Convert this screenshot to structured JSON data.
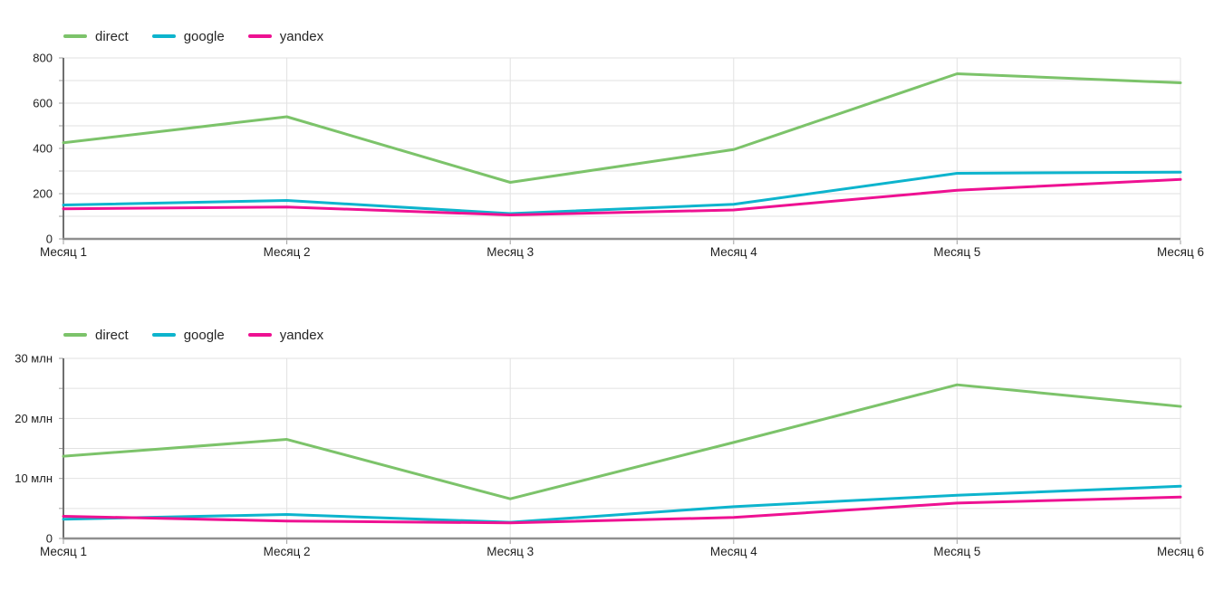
{
  "page": {
    "background": "#ffffff"
  },
  "chart_data": [
    {
      "name": "traffic-by-source-counts",
      "type": "line",
      "title": "",
      "xlabel": "",
      "ylabel": "",
      "categories": [
        "Месяц 1",
        "Месяц 2",
        "Месяц 3",
        "Месяц 4",
        "Месяц 5",
        "Месяц 6"
      ],
      "series": [
        {
          "name": "direct",
          "color": "#7cc36a",
          "values": [
            425,
            540,
            250,
            395,
            730,
            690
          ]
        },
        {
          "name": "google",
          "color": "#0db4cd",
          "values": [
            150,
            170,
            112,
            153,
            290,
            295
          ]
        },
        {
          "name": "yandex",
          "color": "#ee1192",
          "values": [
            133,
            141,
            106,
            128,
            215,
            263
          ]
        }
      ],
      "ylim": [
        0,
        800
      ],
      "y_ticks": [
        {
          "value": 0,
          "label": "0"
        },
        {
          "value": 200,
          "label": "200"
        },
        {
          "value": 400,
          "label": "400"
        },
        {
          "value": 600,
          "label": "600"
        },
        {
          "value": 800,
          "label": "800"
        }
      ],
      "y_minor_step": 100,
      "legend_position": "top-left",
      "grid": "horizontal minor every 100, vertical at each month"
    },
    {
      "name": "traffic-by-source-millions",
      "type": "line",
      "title": "",
      "xlabel": "",
      "ylabel": "",
      "y_unit": "млн",
      "categories": [
        "Месяц 1",
        "Месяц 2",
        "Месяц 3",
        "Месяц 4",
        "Месяц 5",
        "Месяц 6"
      ],
      "series": [
        {
          "name": "direct",
          "color": "#7cc36a",
          "values": [
            13.7,
            16.5,
            6.6,
            16.0,
            25.6,
            22.0
          ]
        },
        {
          "name": "google",
          "color": "#0db4cd",
          "values": [
            3.2,
            4.0,
            2.7,
            5.3,
            7.2,
            8.7
          ]
        },
        {
          "name": "yandex",
          "color": "#ee1192",
          "values": [
            3.7,
            2.9,
            2.6,
            3.5,
            5.9,
            6.9
          ]
        }
      ],
      "ylim": [
        0,
        30
      ],
      "y_ticks": [
        {
          "value": 0,
          "label": "0"
        },
        {
          "value": 10,
          "label": "10 млн"
        },
        {
          "value": 20,
          "label": "20 млн"
        },
        {
          "value": 30,
          "label": "30 млн"
        }
      ],
      "y_minor_step": 5,
      "legend_position": "top-left",
      "grid": "horizontal minor every 5 млн, vertical at each month"
    }
  ],
  "theme": {
    "grid_color": "#e2e2e2",
    "axis_color": "#777777",
    "tick_color": "#9e9e9e",
    "text_color": "#1f1f1f"
  }
}
